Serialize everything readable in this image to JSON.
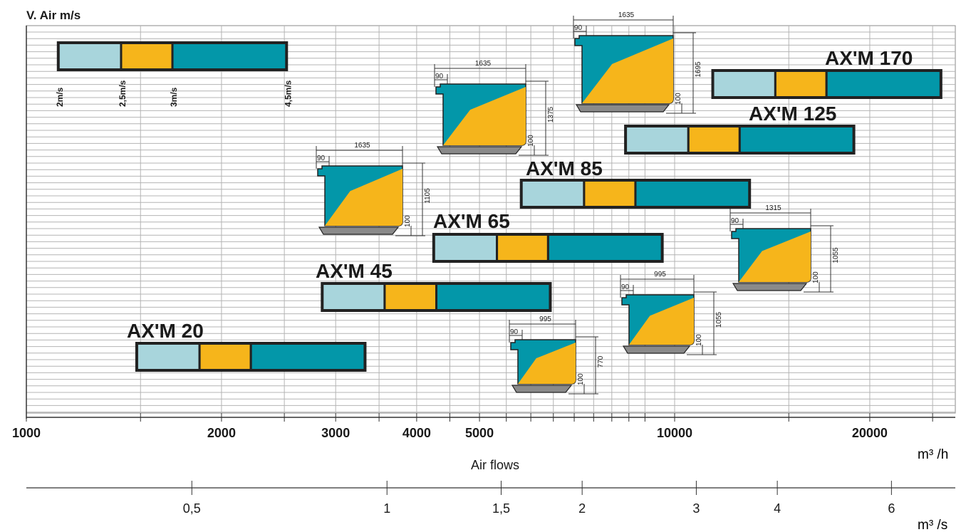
{
  "chart_data": {
    "type": "bar",
    "title": "",
    "ylabel": "V. Air m/s",
    "xlabel": "Air flows",
    "x_unit_primary": "m³ /h",
    "x_unit_secondary": "m³ /s",
    "x_scale": "log",
    "xlim": [
      1000,
      28000
    ],
    "x_ticks": [
      {
        "value": 1000,
        "label": "1000"
      },
      {
        "value": 2000,
        "label": "2000"
      },
      {
        "value": 3000,
        "label": "3000"
      },
      {
        "value": 4000,
        "label": "4000"
      },
      {
        "value": 5000,
        "label": "5000"
      },
      {
        "value": 10000,
        "label": "10000"
      },
      {
        "value": 20000,
        "label": "20000"
      }
    ],
    "x2_ticks": [
      {
        "value": 0.5,
        "label": "0,5"
      },
      {
        "value": 1,
        "label": "1"
      },
      {
        "value": 1.5,
        "label": "1,5"
      },
      {
        "value": 2,
        "label": "2"
      },
      {
        "value": 3,
        "label": "3"
      },
      {
        "value": 4,
        "label": "4"
      },
      {
        "value": 6,
        "label": "6"
      }
    ],
    "speed_labels": [
      "2m/s",
      "2,5m/s",
      "3m/s",
      "4,5m/s"
    ],
    "segment_colors": [
      "#a8d5dc",
      "#f6b51b",
      "#0397a9"
    ],
    "legend_bar": {
      "flows": [
        1120,
        1400,
        1680,
        2520
      ]
    },
    "series": [
      {
        "name": "AX'M 20",
        "flows": [
          1480,
          1850,
          2220,
          3330
        ]
      },
      {
        "name": "AX'M 45",
        "flows": [
          2860,
          3570,
          4290,
          6430
        ]
      },
      {
        "name": "AX'M 65",
        "flows": [
          4250,
          5320,
          6380,
          9570
        ]
      },
      {
        "name": "AX'M 85",
        "flows": [
          5800,
          7250,
          8700,
          13050
        ]
      },
      {
        "name": "AX'M 125",
        "flows": [
          8400,
          10500,
          12600,
          18900
        ]
      },
      {
        "name": "AX'M 170",
        "flows": [
          11450,
          14300,
          17150,
          25750
        ]
      }
    ],
    "units": [
      {
        "width": "995",
        "top": "90",
        "height": "770",
        "base": "100"
      },
      {
        "width": "995",
        "top": "90",
        "height": "1055",
        "base": "100"
      },
      {
        "width": "1315",
        "top": "90",
        "height": "1055",
        "base": "100"
      },
      {
        "width": "1635",
        "top": "90",
        "height": "1105",
        "base": "100"
      },
      {
        "width": "1635",
        "top": "90",
        "height": "1375",
        "base": "100"
      },
      {
        "width": "1635",
        "top": "90",
        "height": "1695",
        "base": "100"
      }
    ]
  }
}
